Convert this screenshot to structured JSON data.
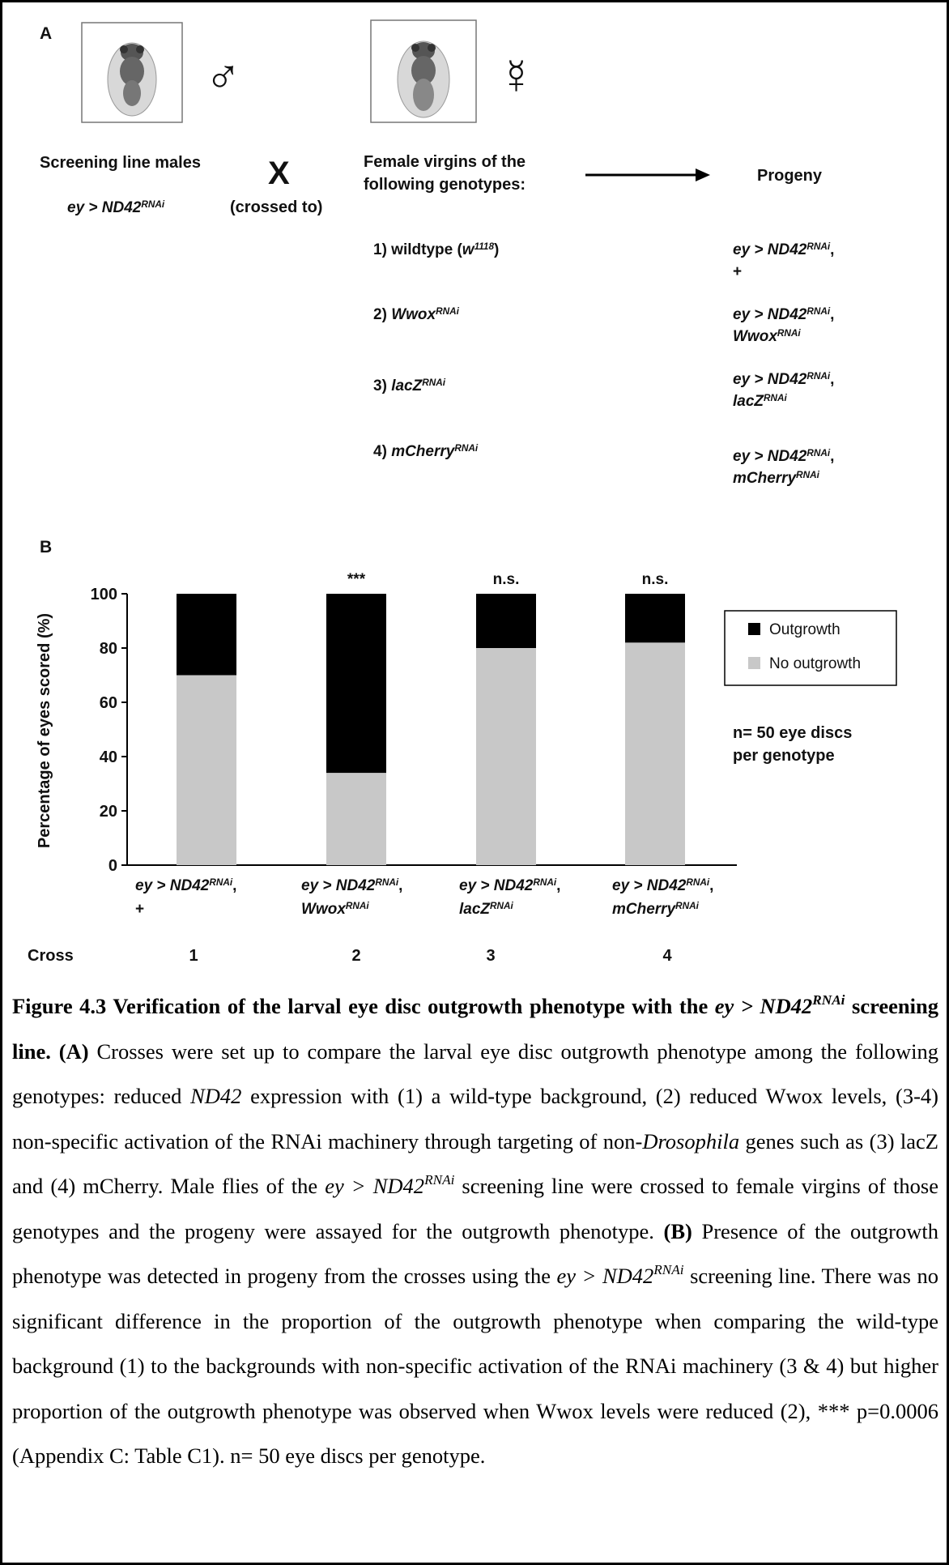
{
  "panel_a": {
    "label": "A",
    "male_symbol": "♂",
    "female_symbol": "☿",
    "male_title": "Screening line males",
    "male_genotype": {
      "driver": "ey > ND42",
      "sup": "RNAi"
    },
    "cross_symbol": "X",
    "crossed_to": "(crossed to)",
    "female_title": [
      "Female virgins of the",
      "following genotypes:"
    ],
    "progeny_title": "Progeny",
    "females": [
      {
        "prefix": "1) wildtype (",
        "gene": "w",
        "sup": "1118",
        "suffix": ")"
      },
      {
        "prefix": "2) ",
        "gene": "Wwox",
        "sup": "RNAi"
      },
      {
        "prefix": "3) ",
        "gene": "lacZ",
        "sup": "RNAi"
      },
      {
        "prefix": "4) ",
        "gene": "mCherry",
        "sup": "RNAi"
      }
    ],
    "progeny": [
      {
        "driver": "ey > ND42",
        "sup": "RNAi",
        "sep": ",",
        "partner": "+"
      },
      {
        "driver": "ey > ND42",
        "sup": "RNAi",
        "sep": ",",
        "partner": "Wwox",
        "partner_sup": "RNAi"
      },
      {
        "driver": "ey > ND42",
        "sup": "RNAi",
        "sep": ",",
        "partner": "lacZ",
        "partner_sup": "RNAi"
      },
      {
        "driver": "ey > ND42",
        "sup": "RNAi",
        "sep": ",",
        "partner": "mCherry",
        "partner_sup": "RNAi"
      }
    ]
  },
  "panel_b_label": "B",
  "chart_data": {
    "type": "stacked_bar",
    "y_label": "Percentage of eyes scored (%)",
    "categories": [
      {
        "driver": "ey > ND42",
        "sup": "RNAi",
        "sep": ",",
        "partner": "+"
      },
      {
        "driver": "ey > ND42",
        "sup": "RNAi",
        "sep": ",",
        "partner": "Wwox",
        "partner_sup": "RNAi"
      },
      {
        "driver": "ey > ND42",
        "sup": "RNAi",
        "sep": ",",
        "partner": "lacZ",
        "partner_sup": "RNAi"
      },
      {
        "driver": "ey > ND42",
        "sup": "RNAi",
        "sep": ",",
        "partner": "mCherry",
        "partner_sup": "RNAi"
      }
    ],
    "series": [
      {
        "name": "Outgrowth",
        "color": "#000000",
        "values": [
          30,
          66,
          20,
          18
        ]
      },
      {
        "name": "No outgrowth",
        "color": "#c8c8c8",
        "values": [
          70,
          34,
          80,
          82
        ]
      }
    ],
    "annotations": [
      null,
      "***",
      "n.s.",
      "n.s."
    ],
    "ylim": [
      0,
      100
    ],
    "yticks": [
      0,
      20,
      40,
      60,
      80,
      100
    ],
    "note": [
      "n= 50 eye discs",
      "per genotype"
    ],
    "cross_label": "Cross",
    "cross_numbers": [
      "1",
      "2",
      "3",
      "4"
    ]
  },
  "caption": [
    {
      "text": "Figure 4.3 Verification of the larval eye disc outgrowth phenotype with the ",
      "style": "bold"
    },
    {
      "text": "ey > ND42",
      "style": "bold-italic"
    },
    {
      "text": "RNAi",
      "style": "bold-italic-sup"
    },
    {
      "text": " screening line. (A)",
      "style": "bold"
    },
    {
      "text": " Crosses were set up to compare the larval eye disc outgrowth phenotype among the following genotypes: reduced "
    },
    {
      "text": "ND42",
      "style": "italic"
    },
    {
      "text": " expression with (1) a wild-type background, (2) reduced Wwox levels, (3-4) non-specific activation of the RNAi machinery through targeting of non-"
    },
    {
      "text": "Drosophila",
      "style": "italic"
    },
    {
      "text": " genes such as (3) lacZ and (4) mCherry. Male flies of the "
    },
    {
      "text": "ey > ND42",
      "style": "italic"
    },
    {
      "text": "RNAi",
      "style": "italic-sup"
    },
    {
      "text": " screening line were crossed to female virgins of those genotypes and the progeny were assayed for the outgrowth phenotype. "
    },
    {
      "text": "(B)",
      "style": "bold"
    },
    {
      "text": " Presence of the outgrowth phenotype was detected in progeny from the crosses using the "
    },
    {
      "text": "ey > ND42",
      "style": "italic"
    },
    {
      "text": "RNAi",
      "style": "italic-sup"
    },
    {
      "text": "  screening line. There was no significant difference in the proportion of the outgrowth phenotype when comparing the wild-type background (1) to the backgrounds with non-specific activation of the RNAi machinery (3 & 4) but higher proportion of the outgrowth phenotype was observed when Wwox levels were reduced (2), *** p=0.0006 (Appendix C: Table C1).  n= 50 eye discs per genotype."
    }
  ]
}
